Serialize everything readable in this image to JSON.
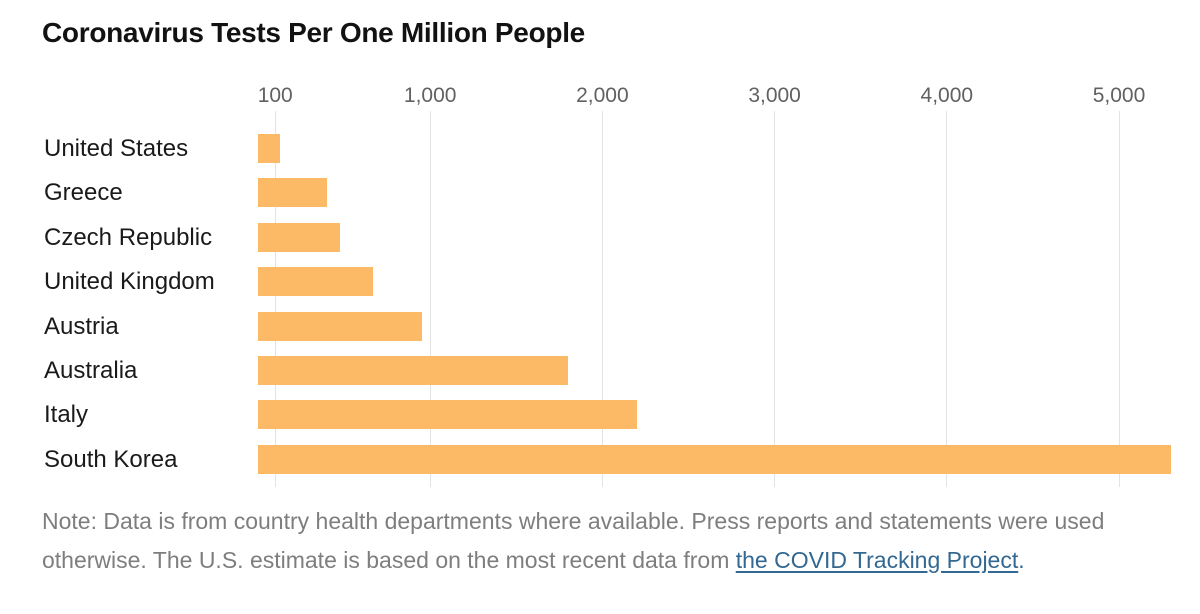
{
  "title": "Coronavirus Tests Per One Million People",
  "chart_data": {
    "type": "bar",
    "orientation": "horizontal",
    "title": "Coronavirus Tests Per One Million People",
    "xlabel": "",
    "ylabel": "",
    "categories": [
      "United States",
      "Greece",
      "Czech Republic",
      "United Kingdom",
      "Austria",
      "Australia",
      "Italy",
      "South Korea"
    ],
    "values": [
      125,
      400,
      475,
      665,
      950,
      1800,
      2200,
      5300
    ],
    "x_ticks": [
      100,
      1000,
      2000,
      3000,
      4000,
      5000
    ],
    "x_tick_labels": [
      "100",
      "1,000",
      "2,000",
      "3,000",
      "4,000",
      "5,000"
    ],
    "xlim": [
      0,
      5450
    ],
    "grid": "vertical-only",
    "legend": "none"
  },
  "note": {
    "line1": "Note: Data is from country health departments where available. Press reports and statements were used",
    "line2_prefix": "otherwise. The U.S. estimate is based on the most recent data from ",
    "link_text": "the COVID Tracking Project",
    "suffix": "."
  },
  "colors": {
    "bar": "#FCB966",
    "gridline": "#E3E3E3",
    "title_text": "#121212",
    "category_text": "#1A1A1A",
    "tick_text": "#616161",
    "note_text": "#7E7E7E",
    "link": "#326891"
  }
}
